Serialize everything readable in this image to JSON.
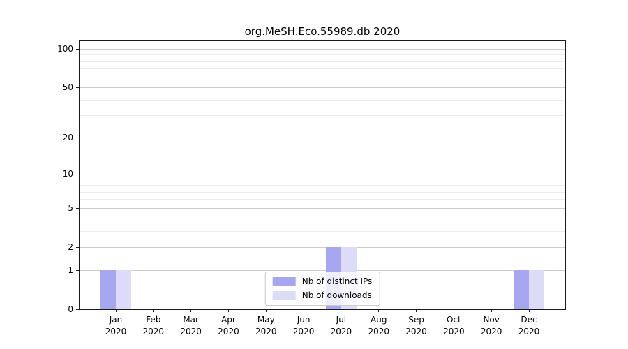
{
  "title": "org.MeSH.Eco.55989.db 2020",
  "chart_data": {
    "type": "bar",
    "title": "org.MeSH.Eco.55989.db 2020",
    "scale": "log10(1+y)",
    "grid": "horizontal",
    "categories": [
      "Jan",
      "Feb",
      "Mar",
      "Apr",
      "May",
      "Jun",
      "Jul",
      "Aug",
      "Sep",
      "Oct",
      "Nov",
      "Dec"
    ],
    "x_year": "2020",
    "series": [
      {
        "name": "Nb of distinct IPs",
        "color": "#a7a7f0",
        "values": [
          1,
          0,
          0,
          0,
          0,
          0,
          2,
          0,
          0,
          0,
          0,
          1
        ]
      },
      {
        "name": "Nb of downloads",
        "color": "#dcdcf9",
        "values": [
          1,
          0,
          0,
          0,
          0,
          0,
          2,
          0,
          0,
          0,
          0,
          1
        ]
      }
    ],
    "yticks": [
      0,
      1,
      2,
      5,
      10,
      20,
      50,
      100
    ],
    "minor_yticks": [
      3,
      4,
      6,
      7,
      8,
      9,
      30,
      40,
      60,
      70,
      80,
      90
    ],
    "ylim": [
      0,
      115
    ],
    "legend_position": "lower center",
    "colors": {
      "major_grid": "#cccccc",
      "minor_grid": "#ececec",
      "spine": "#1a1a1a"
    }
  }
}
